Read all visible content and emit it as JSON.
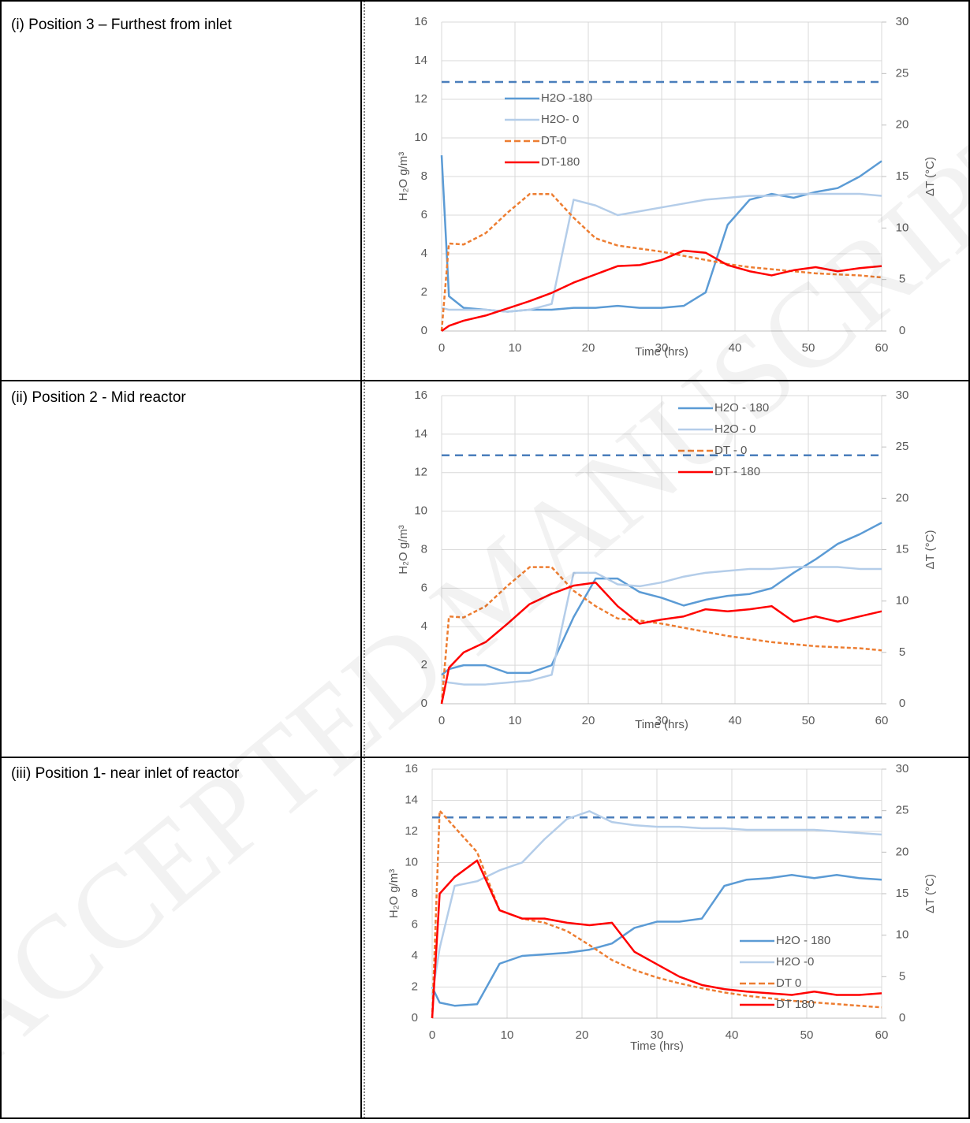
{
  "table": {
    "rows": [
      "(i) Position 3 – Furthest from inlet",
      "(ii) Position 2 - Mid reactor",
      "(iii) Position 1- near inlet of reactor"
    ]
  },
  "watermark": "ACCEPTED MANUSCRIPT",
  "chart_data": [
    {
      "type": "line",
      "xlabel": "Time (hrs)",
      "ylabel": "H₂O g/m³",
      "y2label": "ΔT (°C)",
      "xlim": [
        0,
        60
      ],
      "xticks": [
        0,
        10,
        20,
        30,
        40,
        50,
        60
      ],
      "ylim": [
        0,
        16
      ],
      "yticks": [
        0,
        2,
        4,
        6,
        8,
        10,
        12,
        14,
        16
      ],
      "y2lim": [
        0,
        30
      ],
      "y2ticks": [
        0,
        5,
        10,
        15,
        20,
        25,
        30
      ],
      "grid": true,
      "legend": "upper left",
      "reference_line": {
        "value": 12.9,
        "color": "#4a7ebb"
      },
      "x": [
        0,
        1,
        3,
        6,
        9,
        12,
        15,
        18,
        21,
        24,
        27,
        30,
        33,
        36,
        39,
        42,
        45,
        48,
        51,
        54,
        57,
        60
      ],
      "series": [
        {
          "name": "H2O -180",
          "color": "#5b9bd5",
          "dash": false,
          "axis": "y",
          "values": [
            9.1,
            1.8,
            1.2,
            1.1,
            1.0,
            1.1,
            1.1,
            1.2,
            1.2,
            1.3,
            1.2,
            1.2,
            1.3,
            2.0,
            5.5,
            6.8,
            7.1,
            6.9,
            7.2,
            7.4,
            8.0,
            8.8
          ]
        },
        {
          "name": "H2O- 0",
          "color": "#b4cde9",
          "dash": false,
          "axis": "y",
          "values": [
            1.2,
            1.1,
            1.1,
            1.1,
            1.0,
            1.1,
            1.4,
            6.8,
            6.5,
            6.0,
            6.2,
            6.4,
            6.6,
            6.8,
            6.9,
            7.0,
            7.0,
            7.1,
            7.1,
            7.1,
            7.1,
            7.0
          ]
        },
        {
          "name": "DT-0",
          "color": "#ed7d31",
          "dash": true,
          "axis": "y2",
          "values": [
            0,
            8.5,
            8.4,
            9.5,
            11.5,
            13.3,
            13.3,
            11,
            9,
            8.3,
            8.0,
            7.7,
            7.3,
            6.9,
            6.5,
            6.2,
            6.0,
            5.8,
            5.6,
            5.5,
            5.4,
            5.2
          ]
        },
        {
          "name": "DT-180",
          "color": "#ff0000",
          "dash": false,
          "axis": "y2",
          "values": [
            0,
            0.5,
            1,
            1.5,
            2.2,
            2.9,
            3.7,
            4.7,
            5.5,
            6.3,
            6.4,
            6.9,
            7.8,
            7.6,
            6.4,
            5.8,
            5.4,
            5.9,
            6.2,
            5.8,
            6.1,
            6.3
          ]
        }
      ]
    },
    {
      "type": "line",
      "xlabel": "Time (hrs)",
      "ylabel": "H₂O g/m³",
      "y2label": "ΔT (°C)",
      "xlim": [
        0,
        60
      ],
      "xticks": [
        0,
        10,
        20,
        30,
        40,
        50,
        60
      ],
      "ylim": [
        0,
        16
      ],
      "yticks": [
        0,
        2,
        4,
        6,
        8,
        10,
        12,
        14,
        16
      ],
      "y2lim": [
        0,
        30
      ],
      "y2ticks": [
        0,
        5,
        10,
        15,
        20,
        25,
        30
      ],
      "grid": true,
      "legend": "upper right",
      "reference_line": {
        "value": 12.9,
        "color": "#4a7ebb"
      },
      "x": [
        0,
        1,
        3,
        6,
        9,
        12,
        15,
        18,
        21,
        24,
        27,
        30,
        33,
        36,
        39,
        42,
        45,
        48,
        51,
        54,
        57,
        60
      ],
      "series": [
        {
          "name": "H2O - 180",
          "color": "#5b9bd5",
          "dash": false,
          "axis": "y",
          "values": [
            1.5,
            1.8,
            2.0,
            2.0,
            1.6,
            1.6,
            2.0,
            4.5,
            6.5,
            6.5,
            5.8,
            5.5,
            5.1,
            5.4,
            5.6,
            5.7,
            6.0,
            6.8,
            7.5,
            8.3,
            8.8,
            9.4
          ]
        },
        {
          "name": "H2O - 0",
          "color": "#b4cde9",
          "dash": false,
          "axis": "y",
          "values": [
            1.2,
            1.1,
            1.0,
            1.0,
            1.1,
            1.2,
            1.5,
            6.8,
            6.8,
            6.2,
            6.1,
            6.3,
            6.6,
            6.8,
            6.9,
            7.0,
            7.0,
            7.1,
            7.1,
            7.1,
            7.0,
            7.0
          ]
        },
        {
          "name": "DT - 0",
          "color": "#ed7d31",
          "dash": true,
          "axis": "y2",
          "values": [
            0,
            8.5,
            8.4,
            9.5,
            11.5,
            13.3,
            13.3,
            11,
            9.5,
            8.3,
            8.1,
            7.8,
            7.4,
            7.0,
            6.6,
            6.3,
            6.0,
            5.8,
            5.6,
            5.5,
            5.4,
            5.2
          ]
        },
        {
          "name": "DT - 180",
          "color": "#ff0000",
          "dash": false,
          "axis": "y2",
          "values": [
            0,
            3.5,
            5,
            6,
            7.8,
            9.7,
            10.7,
            11.5,
            11.8,
            9.5,
            7.8,
            8.2,
            8.5,
            9.2,
            9.0,
            9.2,
            9.5,
            8.0,
            8.5,
            8.0,
            8.5,
            9.0
          ]
        }
      ]
    },
    {
      "type": "line",
      "xlabel": "Time (hrs)",
      "ylabel": "H₂O g/m³",
      "y2label": "ΔT (°C)",
      "xlim": [
        0,
        60
      ],
      "xticks": [
        0,
        10,
        20,
        30,
        40,
        50,
        60
      ],
      "ylim": [
        0,
        16
      ],
      "yticks": [
        0,
        2,
        4,
        6,
        8,
        10,
        12,
        14,
        16
      ],
      "y2lim": [
        0,
        30
      ],
      "y2ticks": [
        0,
        5,
        10,
        15,
        20,
        25,
        30
      ],
      "grid": true,
      "legend": "center right",
      "reference_line": {
        "value": 12.9,
        "color": "#4a7ebb"
      },
      "x": [
        0,
        1,
        3,
        6,
        9,
        12,
        15,
        18,
        21,
        24,
        27,
        30,
        33,
        36,
        39,
        42,
        45,
        48,
        51,
        54,
        57,
        60
      ],
      "series": [
        {
          "name": "H2O - 180",
          "color": "#5b9bd5",
          "dash": false,
          "axis": "y",
          "values": [
            2.0,
            1.0,
            0.8,
            0.9,
            3.5,
            4.0,
            4.1,
            4.2,
            4.4,
            4.8,
            5.8,
            6.2,
            6.2,
            6.4,
            8.5,
            8.9,
            9.0,
            9.2,
            9.0,
            9.2,
            9.0,
            8.9
          ]
        },
        {
          "name": "H2O -0",
          "color": "#b4cde9",
          "dash": false,
          "axis": "y",
          "values": [
            1.5,
            4.5,
            8.5,
            8.8,
            9.5,
            10.0,
            11.5,
            12.8,
            13.3,
            12.6,
            12.4,
            12.3,
            12.3,
            12.2,
            12.2,
            12.1,
            12.1,
            12.1,
            12.1,
            12.0,
            11.9,
            11.8
          ]
        },
        {
          "name": "DT 0",
          "color": "#ed7d31",
          "dash": true,
          "axis": "y2",
          "values": [
            0,
            25,
            23,
            20,
            13,
            12,
            11.5,
            10.5,
            8.8,
            7,
            5.8,
            4.9,
            4.2,
            3.6,
            3.1,
            2.7,
            2.4,
            2.1,
            1.9,
            1.7,
            1.5,
            1.3
          ]
        },
        {
          "name": "DT 180",
          "color": "#ff0000",
          "dash": false,
          "axis": "y2",
          "values": [
            0,
            15,
            17,
            19,
            13,
            12,
            12,
            11.5,
            11.2,
            11.5,
            8,
            6.5,
            5,
            4,
            3.5,
            3.2,
            3,
            2.8,
            3.2,
            2.8,
            2.8,
            3.0
          ]
        }
      ]
    }
  ]
}
